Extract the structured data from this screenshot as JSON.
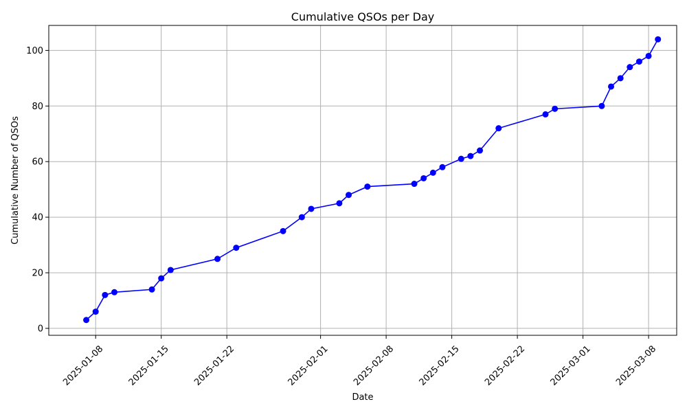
{
  "chart_data": {
    "type": "line",
    "title": "Cumulative QSOs per Day",
    "xlabel": "Date",
    "ylabel": "Cumulative Number of QSOs",
    "grid": true,
    "legend": "none",
    "xlim": [
      "2025-01-03",
      "2025-03-11"
    ],
    "ylim": [
      -2.5,
      109
    ],
    "x_ticks": [
      "2025-01-08",
      "2025-01-15",
      "2025-01-22",
      "2025-02-01",
      "2025-02-08",
      "2025-02-15",
      "2025-02-22",
      "2025-03-01",
      "2025-03-08"
    ],
    "y_ticks": [
      0,
      20,
      40,
      60,
      80,
      100
    ],
    "series": [
      {
        "color": "#0000ff",
        "marker": "circle",
        "points": [
          {
            "x": "2025-01-07",
            "y": 3
          },
          {
            "x": "2025-01-08",
            "y": 6
          },
          {
            "x": "2025-01-09",
            "y": 12
          },
          {
            "x": "2025-01-10",
            "y": 13
          },
          {
            "x": "2025-01-14",
            "y": 14
          },
          {
            "x": "2025-01-15",
            "y": 18
          },
          {
            "x": "2025-01-16",
            "y": 21
          },
          {
            "x": "2025-01-21",
            "y": 25
          },
          {
            "x": "2025-01-23",
            "y": 29
          },
          {
            "x": "2025-01-28",
            "y": 35
          },
          {
            "x": "2025-01-30",
            "y": 40
          },
          {
            "x": "2025-01-31",
            "y": 43
          },
          {
            "x": "2025-02-03",
            "y": 45
          },
          {
            "x": "2025-02-04",
            "y": 48
          },
          {
            "x": "2025-02-06",
            "y": 51
          },
          {
            "x": "2025-02-11",
            "y": 52
          },
          {
            "x": "2025-02-12",
            "y": 54
          },
          {
            "x": "2025-02-13",
            "y": 56
          },
          {
            "x": "2025-02-14",
            "y": 58
          },
          {
            "x": "2025-02-16",
            "y": 61
          },
          {
            "x": "2025-02-17",
            "y": 62
          },
          {
            "x": "2025-02-18",
            "y": 64
          },
          {
            "x": "2025-02-20",
            "y": 72
          },
          {
            "x": "2025-02-25",
            "y": 77
          },
          {
            "x": "2025-02-26",
            "y": 79
          },
          {
            "x": "2025-03-03",
            "y": 80
          },
          {
            "x": "2025-03-04",
            "y": 87
          },
          {
            "x": "2025-03-05",
            "y": 90
          },
          {
            "x": "2025-03-06",
            "y": 94
          },
          {
            "x": "2025-03-07",
            "y": 96
          },
          {
            "x": "2025-03-08",
            "y": 98
          },
          {
            "x": "2025-03-09",
            "y": 104
          }
        ]
      }
    ]
  }
}
